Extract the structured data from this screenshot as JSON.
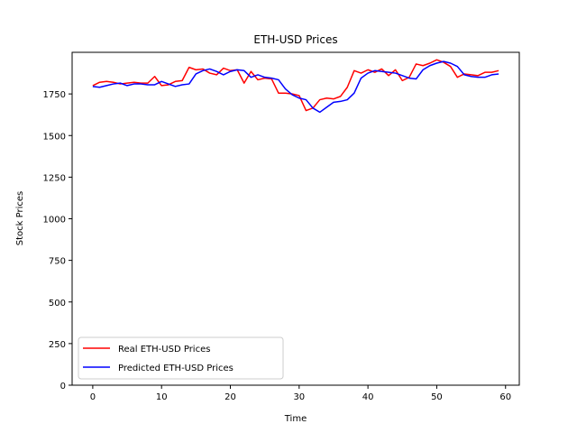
{
  "chart_data": {
    "type": "line",
    "title": "ETH-USD Prices",
    "xlabel": "Time",
    "ylabel": "Stock Prices",
    "xlim": [
      -3,
      62
    ],
    "ylim": [
      0,
      2000
    ],
    "xticks": [
      0,
      10,
      20,
      30,
      40,
      50,
      60
    ],
    "yticks": [
      0,
      250,
      500,
      750,
      1000,
      1250,
      1500,
      1750
    ],
    "grid": false,
    "legend_position": "lower-left",
    "series": [
      {
        "name": "Real ETH-USD Prices",
        "color": "#ff0000",
        "x": [
          0,
          1,
          2,
          3,
          4,
          5,
          6,
          7,
          8,
          9,
          10,
          11,
          12,
          13,
          14,
          15,
          16,
          17,
          18,
          19,
          20,
          21,
          22,
          23,
          24,
          25,
          26,
          27,
          28,
          29,
          30,
          31,
          32,
          33,
          34,
          35,
          36,
          37,
          38,
          39,
          40,
          41,
          42,
          43,
          44,
          45,
          46,
          47,
          48,
          49,
          50,
          51,
          52,
          53,
          54,
          55,
          56,
          57,
          58,
          59
        ],
        "values": [
          1800,
          1820,
          1825,
          1820,
          1810,
          1815,
          1820,
          1815,
          1815,
          1855,
          1800,
          1805,
          1825,
          1830,
          1910,
          1895,
          1900,
          1875,
          1865,
          1905,
          1890,
          1895,
          1815,
          1885,
          1835,
          1845,
          1840,
          1755,
          1755,
          1750,
          1740,
          1650,
          1665,
          1715,
          1725,
          1720,
          1735,
          1790,
          1890,
          1875,
          1895,
          1880,
          1900,
          1860,
          1895,
          1830,
          1850,
          1930,
          1920,
          1935,
          1955,
          1940,
          1915,
          1850,
          1870,
          1865,
          1860,
          1880,
          1880,
          1890
        ]
      },
      {
        "name": "Predicted ETH-USD Prices",
        "color": "#0000ff",
        "x": [
          0,
          1,
          2,
          3,
          4,
          5,
          6,
          7,
          8,
          9,
          10,
          11,
          12,
          13,
          14,
          15,
          16,
          17,
          18,
          19,
          20,
          21,
          22,
          23,
          24,
          25,
          26,
          27,
          28,
          29,
          30,
          31,
          32,
          33,
          34,
          35,
          36,
          37,
          38,
          39,
          40,
          41,
          42,
          43,
          44,
          45,
          46,
          47,
          48,
          49,
          50,
          51,
          52,
          53,
          54,
          55,
          56,
          57,
          58,
          59
        ],
        "values": [
          1795,
          1790,
          1800,
          1810,
          1815,
          1800,
          1810,
          1810,
          1805,
          1805,
          1825,
          1810,
          1795,
          1805,
          1810,
          1870,
          1890,
          1900,
          1885,
          1865,
          1885,
          1895,
          1890,
          1850,
          1865,
          1850,
          1845,
          1835,
          1780,
          1745,
          1725,
          1715,
          1665,
          1640,
          1670,
          1700,
          1705,
          1715,
          1755,
          1845,
          1875,
          1890,
          1885,
          1880,
          1875,
          1860,
          1845,
          1840,
          1895,
          1920,
          1935,
          1945,
          1935,
          1915,
          1865,
          1855,
          1850,
          1850,
          1865,
          1870
        ]
      }
    ]
  }
}
